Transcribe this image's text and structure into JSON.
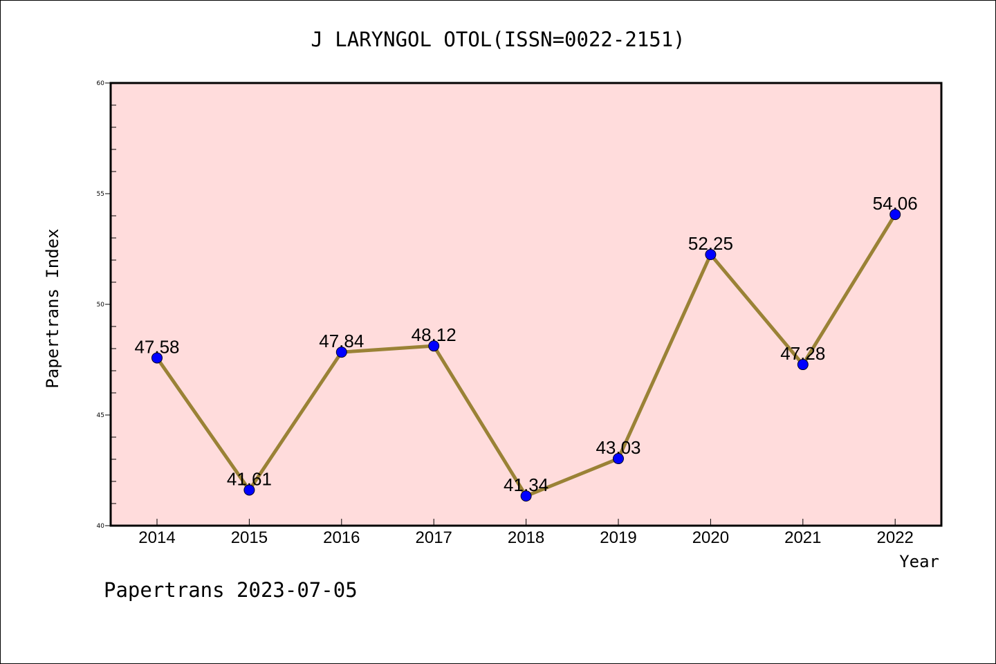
{
  "chart_data": {
    "type": "line",
    "title": "J LARYNGOL OTOL(ISSN=0022-2151)",
    "xlabel": "Year",
    "ylabel": "Papertrans Index",
    "categories": [
      "2014",
      "2015",
      "2016",
      "2017",
      "2018",
      "2019",
      "2020",
      "2021",
      "2022"
    ],
    "values": [
      47.58,
      41.61,
      47.84,
      48.12,
      41.34,
      43.03,
      52.25,
      47.28,
      54.06
    ],
    "value_labels": [
      "47.58",
      "41.61",
      "47.84",
      "48.12",
      "41.34",
      "43.03",
      "52.25",
      "47.28",
      "54.06"
    ],
    "ylim": [
      40,
      60
    ],
    "yticks": [
      "40",
      "45",
      "50",
      "55",
      "60"
    ],
    "grid": false,
    "colors": {
      "plot_bg": "#ffdcdc",
      "line": "#9a8236",
      "marker": "#0000ff"
    }
  },
  "footer": {
    "watermark": "Papertrans 2023-07-05"
  }
}
